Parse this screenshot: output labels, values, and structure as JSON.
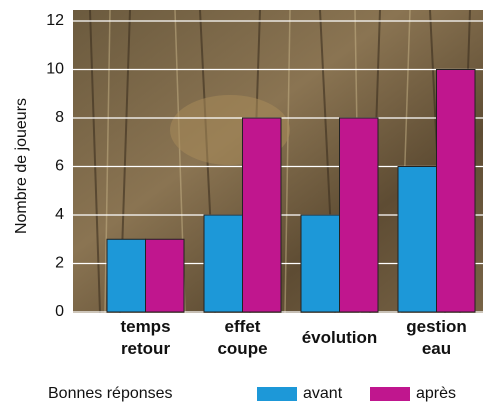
{
  "chart_data": {
    "type": "bar",
    "y_label": "Nombre de joueurs",
    "legend_title": "Bonnes réponses",
    "categories": [
      "temps\nretour",
      "effet\ncoupe",
      "évolution",
      "gestion\neau"
    ],
    "series": [
      {
        "name": "avant",
        "color": "#1d98d8",
        "values": [
          3,
          4,
          4,
          6
        ]
      },
      {
        "name": "après",
        "color": "#c0168e",
        "values": [
          3,
          8,
          8,
          10
        ]
      }
    ],
    "ylim": [
      0,
      12
    ],
    "yticks": [
      0,
      2,
      4,
      6,
      8,
      10,
      12
    ],
    "grid": true
  }
}
